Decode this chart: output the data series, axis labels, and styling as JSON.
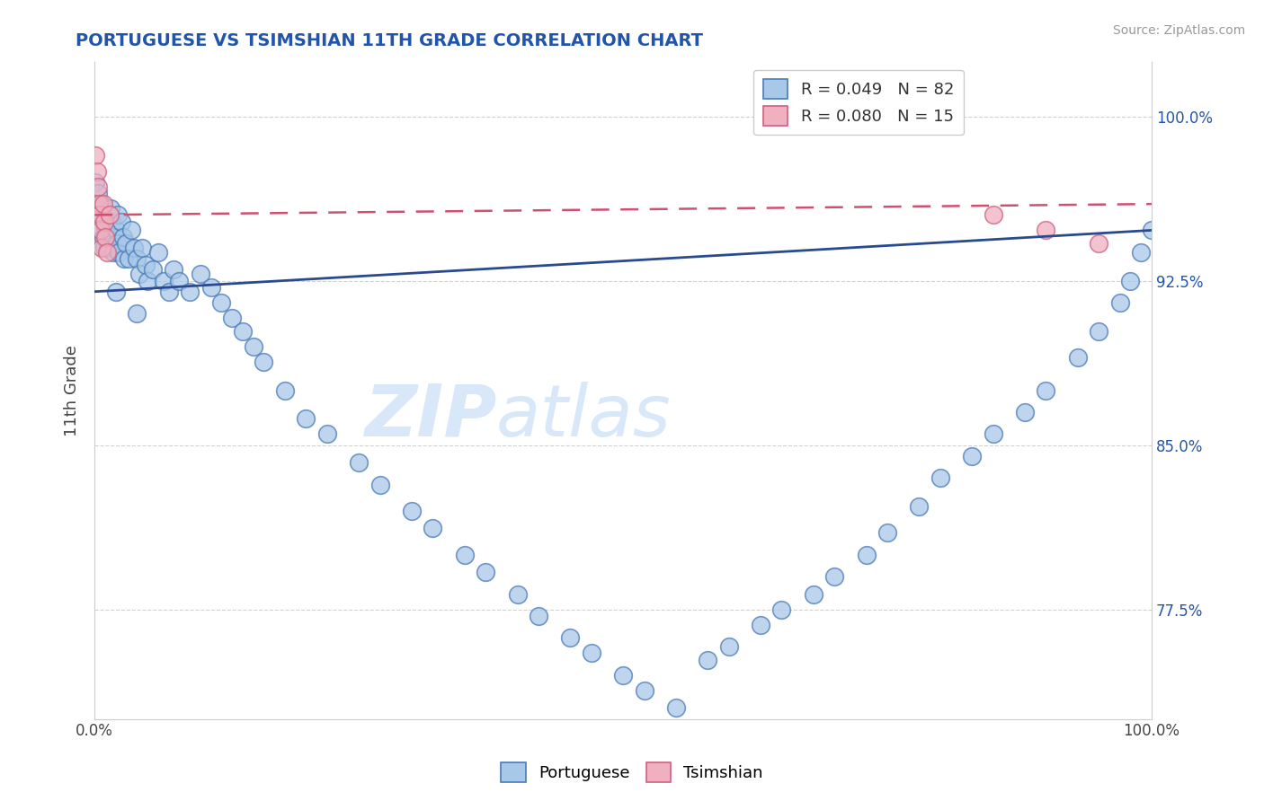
{
  "title": "PORTUGUESE VS TSIMSHIAN 11TH GRADE CORRELATION CHART",
  "source_text": "Source: ZipAtlas.com",
  "ylabel": "11th Grade",
  "xlim": [
    0.0,
    1.0
  ],
  "ylim": [
    0.725,
    1.025
  ],
  "xtick_labels": [
    "0.0%",
    "100.0%"
  ],
  "ytick_positions": [
    0.775,
    0.85,
    0.925,
    1.0
  ],
  "ytick_labels": [
    "77.5%",
    "85.0%",
    "92.5%",
    "100.0%"
  ],
  "legend_r1": "R = 0.049",
  "legend_n1": "N = 82",
  "legend_r2": "R = 0.080",
  "legend_n2": "N = 15",
  "blue_face": "#A8C8E8",
  "blue_edge": "#4A7AB8",
  "pink_face": "#F0B0C0",
  "pink_edge": "#D06080",
  "blue_line_color": "#2A4A90",
  "pink_line_color": "#D05070",
  "title_color": "#2255AA",
  "watermark_color": "#D8E8F8",
  "right_tick_color": "#2255AA",
  "portuguese_x": [
    0.001,
    0.003,
    0.005,
    0.006,
    0.007,
    0.008,
    0.009,
    0.01,
    0.012,
    0.013,
    0.015,
    0.016,
    0.017,
    0.018,
    0.02,
    0.021,
    0.022,
    0.023,
    0.025,
    0.027,
    0.028,
    0.03,
    0.032,
    0.035,
    0.037,
    0.04,
    0.042,
    0.045,
    0.048,
    0.05,
    0.055,
    0.06,
    0.065,
    0.07,
    0.075,
    0.08,
    0.09,
    0.1,
    0.11,
    0.12,
    0.13,
    0.14,
    0.15,
    0.16,
    0.18,
    0.2,
    0.22,
    0.25,
    0.27,
    0.3,
    0.32,
    0.35,
    0.37,
    0.4,
    0.42,
    0.45,
    0.47,
    0.5,
    0.52,
    0.55,
    0.58,
    0.6,
    0.63,
    0.65,
    0.68,
    0.7,
    0.73,
    0.75,
    0.78,
    0.8,
    0.83,
    0.85,
    0.88,
    0.9,
    0.93,
    0.95,
    0.97,
    0.98,
    0.99,
    1.0,
    0.02,
    0.04
  ],
  "portuguese_y": [
    0.97,
    0.965,
    0.95,
    0.96,
    0.955,
    0.945,
    0.94,
    0.95,
    0.945,
    0.94,
    0.958,
    0.952,
    0.945,
    0.938,
    0.948,
    0.942,
    0.955,
    0.938,
    0.952,
    0.945,
    0.935,
    0.942,
    0.935,
    0.948,
    0.94,
    0.935,
    0.928,
    0.94,
    0.932,
    0.925,
    0.93,
    0.938,
    0.925,
    0.92,
    0.93,
    0.925,
    0.92,
    0.928,
    0.922,
    0.915,
    0.908,
    0.902,
    0.895,
    0.888,
    0.875,
    0.862,
    0.855,
    0.842,
    0.832,
    0.82,
    0.812,
    0.8,
    0.792,
    0.782,
    0.772,
    0.762,
    0.755,
    0.745,
    0.738,
    0.73,
    0.752,
    0.758,
    0.768,
    0.775,
    0.782,
    0.79,
    0.8,
    0.81,
    0.822,
    0.835,
    0.845,
    0.855,
    0.865,
    0.875,
    0.89,
    0.902,
    0.915,
    0.925,
    0.938,
    0.948,
    0.92,
    0.91
  ],
  "tsimshian_x": [
    0.001,
    0.002,
    0.003,
    0.004,
    0.005,
    0.006,
    0.007,
    0.008,
    0.009,
    0.01,
    0.012,
    0.014,
    0.85,
    0.9,
    0.95
  ],
  "tsimshian_y": [
    0.982,
    0.975,
    0.968,
    0.96,
    0.955,
    0.948,
    0.94,
    0.96,
    0.952,
    0.945,
    0.938,
    0.955,
    0.955,
    0.948,
    0.942
  ],
  "blue_trend_x": [
    0.0,
    1.0
  ],
  "blue_trend_y": [
    0.92,
    0.948
  ],
  "pink_trend_x": [
    0.0,
    1.0
  ],
  "pink_trend_y": [
    0.955,
    0.96
  ]
}
